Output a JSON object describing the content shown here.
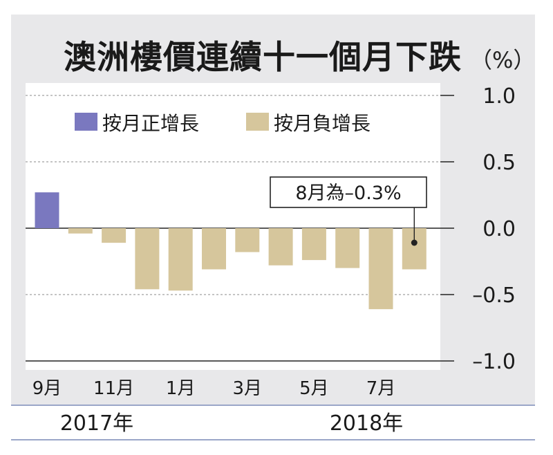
{
  "chart_data": {
    "type": "bar",
    "title": "澳洲樓價連續十一個月下跌",
    "unit": "（%）",
    "categories": [
      "2017-09",
      "2017-10",
      "2017-11",
      "2017-12",
      "2018-01",
      "2018-02",
      "2018-03",
      "2018-04",
      "2018-05",
      "2018-06",
      "2018-07",
      "2018-08"
    ],
    "values": [
      0.27,
      -0.04,
      -0.11,
      -0.46,
      -0.47,
      -0.31,
      -0.18,
      -0.28,
      -0.24,
      -0.3,
      -0.61,
      -0.31
    ],
    "y_ticks": [
      "1.0",
      "0.5",
      "0.0",
      "–0.5",
      "–1.0"
    ],
    "x_tick_labels": [
      "9月",
      "11月",
      "1月",
      "3月",
      "5月",
      "7月"
    ],
    "year_labels": [
      "2017年",
      "2018年"
    ],
    "ylim": [
      -1.0,
      1.0
    ],
    "legend": [
      {
        "label": "按月正增長",
        "color": "#7a78bf"
      },
      {
        "label": "按月負增長",
        "color": "#d6c69c"
      }
    ],
    "annotation": "8月為–0.3%",
    "grid": true,
    "legend_position": "top-left",
    "colors": {
      "positive": "#7a78bf",
      "negative": "#d6c69c",
      "background": "#e8e8ea",
      "plot_area": "#ffffff",
      "rule": "#9aa6c8"
    }
  }
}
